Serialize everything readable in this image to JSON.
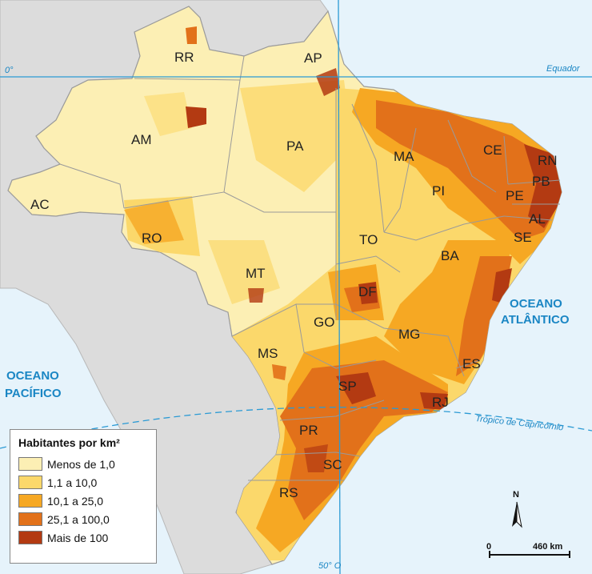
{
  "legend": {
    "title": "Habitantes por km²",
    "items": [
      {
        "label": "Menos de 1,0",
        "color": "#fcefb4"
      },
      {
        "label": "1,1 a 10,0",
        "color": "#fbd86b"
      },
      {
        "label": "10,1 a 25,0",
        "color": "#f6a823"
      },
      {
        "label": "25,1 a 100,0",
        "color": "#e2711a"
      },
      {
        "label": "Mais de 100",
        "color": "#b33a12"
      }
    ]
  },
  "states": {
    "RR": "RR",
    "AP": "AP",
    "AM": "AM",
    "PA": "PA",
    "MA": "MA",
    "CE": "CE",
    "RN": "RN",
    "PB": "PB",
    "PE": "PE",
    "AL": "AL",
    "SE": "SE",
    "PI": "PI",
    "AC": "AC",
    "RO": "RO",
    "TO": "TO",
    "BA": "BA",
    "MT": "MT",
    "DF": "DF",
    "GO": "GO",
    "MG": "MG",
    "ES": "ES",
    "MS": "MS",
    "SP": "SP",
    "RJ": "RJ",
    "PR": "PR",
    "SC": "SC",
    "RS": "RS"
  },
  "oceans": {
    "atlantic_line1": "OCEANO",
    "atlantic_line2": "ATLÂNTICO",
    "pacific_line1": "OCEANO",
    "pacific_line2": "PACÍFICO"
  },
  "lines": {
    "equator": "Equador",
    "equator_degree": "0°",
    "capricorn": "Trópico de Capricórnio",
    "meridian": "50° O"
  },
  "north_arrow": "N",
  "scale": {
    "start": "0",
    "end": "460 km"
  },
  "colors": {
    "ocean": "#e6f3fb",
    "land_other": "#dcdcdc",
    "grid_line": "#2b9ad4",
    "border": "#9a9a9a"
  }
}
